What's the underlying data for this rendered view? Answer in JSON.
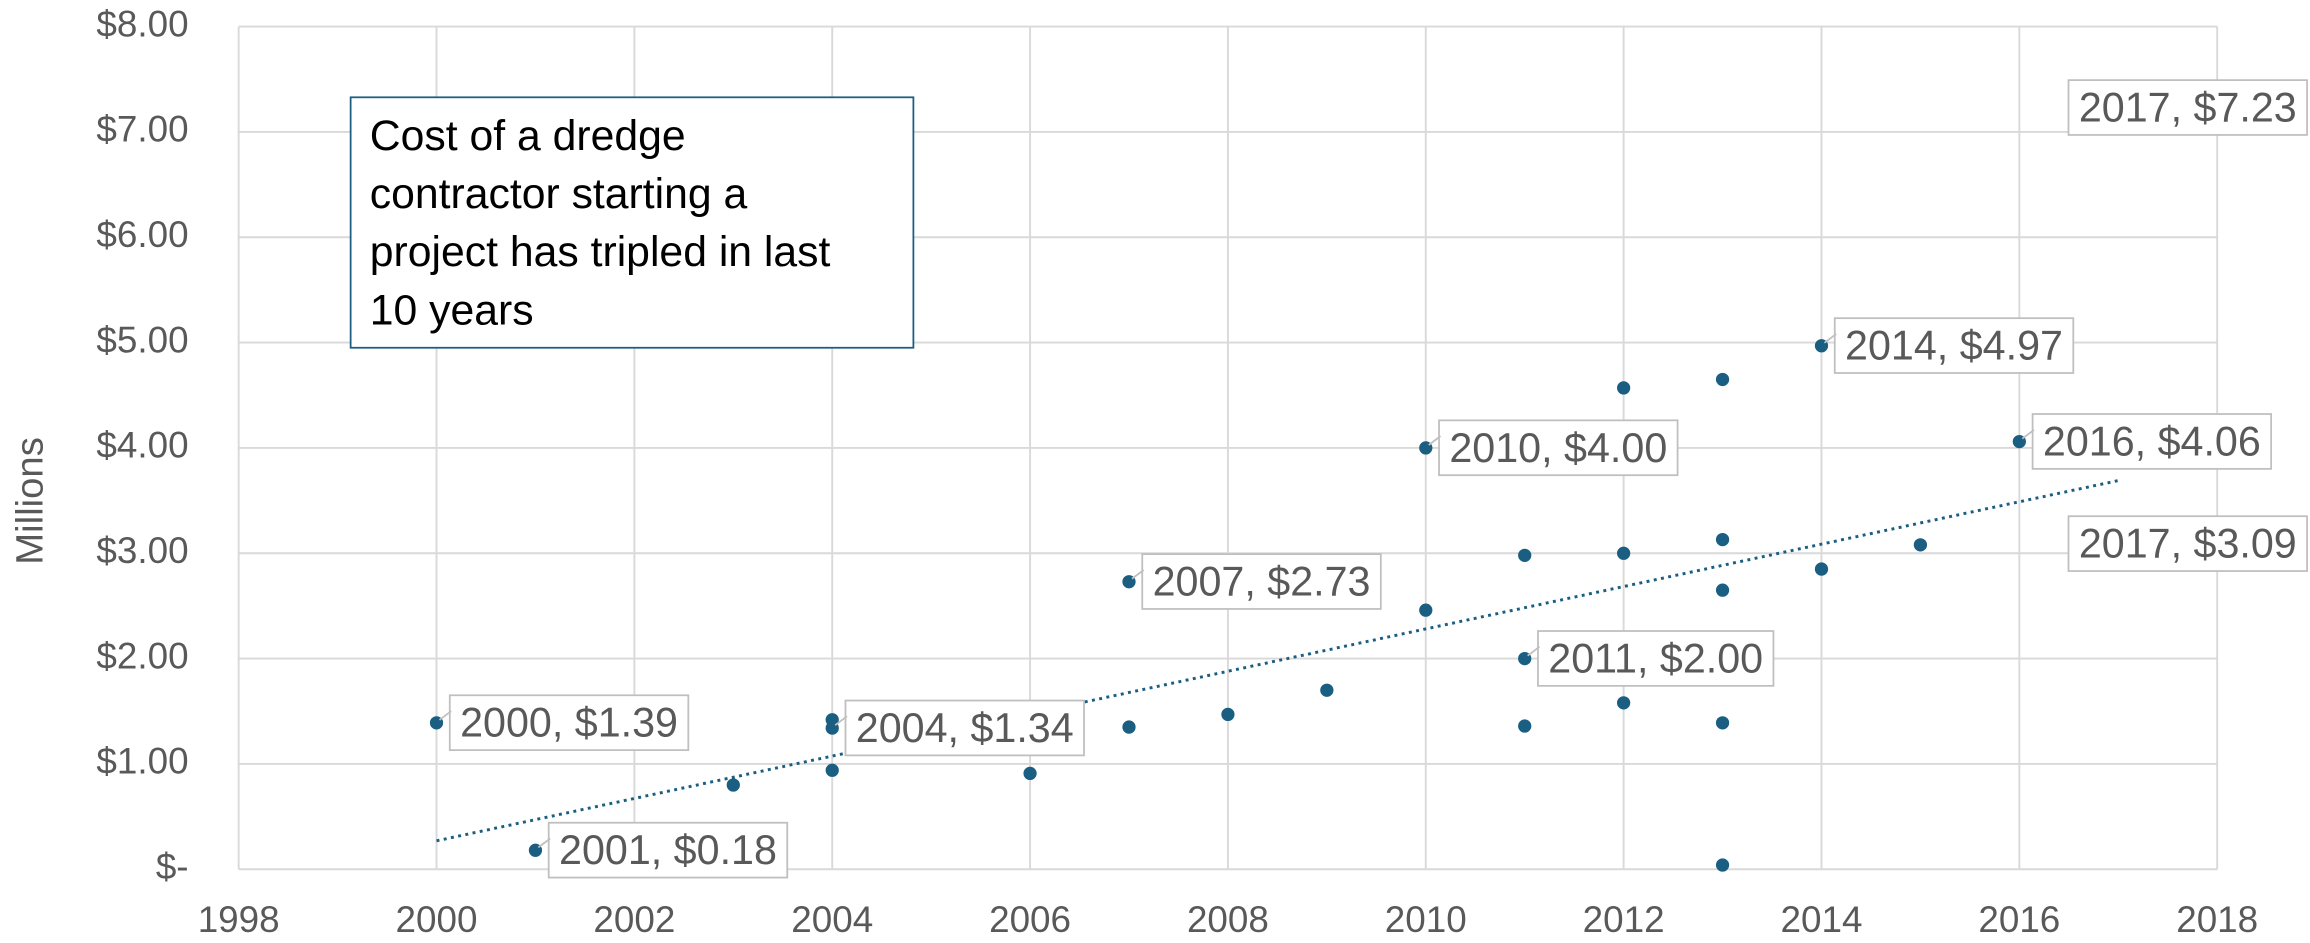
{
  "chart_data": {
    "type": "scatter",
    "y_label": "Millions",
    "annotation": [
      "Cost of a dredge",
      "contractor starting a",
      "project has tripled in last",
      "10 years"
    ],
    "series": [
      {
        "color": "#1a5e82",
        "x": [
          2000,
          2001,
          2003,
          2004,
          2004,
          2004,
          2006,
          2007,
          2007,
          2008,
          2009,
          2010,
          2010,
          2011,
          2011,
          2011,
          2012,
          2012,
          2012,
          2013,
          2013,
          2013,
          2013,
          2013,
          2014,
          2014,
          2015,
          2016,
          2017,
          2017
        ],
        "values": [
          1.39,
          0.18,
          0.8,
          1.42,
          1.34,
          0.94,
          0.91,
          2.73,
          1.35,
          1.47,
          1.7,
          4.0,
          2.46,
          2.98,
          2.0,
          1.36,
          4.57,
          3.0,
          1.58,
          4.65,
          3.13,
          2.65,
          1.39,
          0.04,
          4.97,
          2.85,
          3.08,
          4.06,
          7.23,
          3.09
        ],
        "value_labels": [
          "2000,  $1.39",
          "2001,  $0.18",
          null,
          null,
          "2004,  $1.34",
          null,
          null,
          "2007,  $2.73",
          null,
          null,
          null,
          "2010,  $4.00",
          null,
          null,
          "2011,  $2.00",
          null,
          null,
          null,
          null,
          null,
          null,
          null,
          null,
          null,
          "2014,  $4.97",
          null,
          null,
          "2016,  $4.06",
          "2017,  $7.23",
          "2017,  $3.09"
        ]
      }
    ],
    "trendline": {
      "x": [
        2000,
        2017
      ],
      "values": [
        0.27,
        3.69
      ],
      "color": "#1a5e82"
    },
    "xlim": [
      1998,
      2018
    ],
    "xticks": [
      1998,
      2000,
      2002,
      2004,
      2006,
      2008,
      2010,
      2012,
      2014,
      2016,
      2018
    ],
    "ylim": [
      0,
      8
    ],
    "yticks": [
      {
        "value": 0,
        "label": "$-"
      },
      {
        "value": 1,
        "label": "$1.00"
      },
      {
        "value": 2,
        "label": "$2.00"
      },
      {
        "value": 3,
        "label": "$3.00"
      },
      {
        "value": 4,
        "label": "$4.00"
      },
      {
        "value": 5,
        "label": "$5.00"
      },
      {
        "value": 6,
        "label": "$6.00"
      },
      {
        "value": 7,
        "label": "$7.00"
      },
      {
        "value": 8,
        "label": "$8.00"
      }
    ],
    "grid": true
  }
}
